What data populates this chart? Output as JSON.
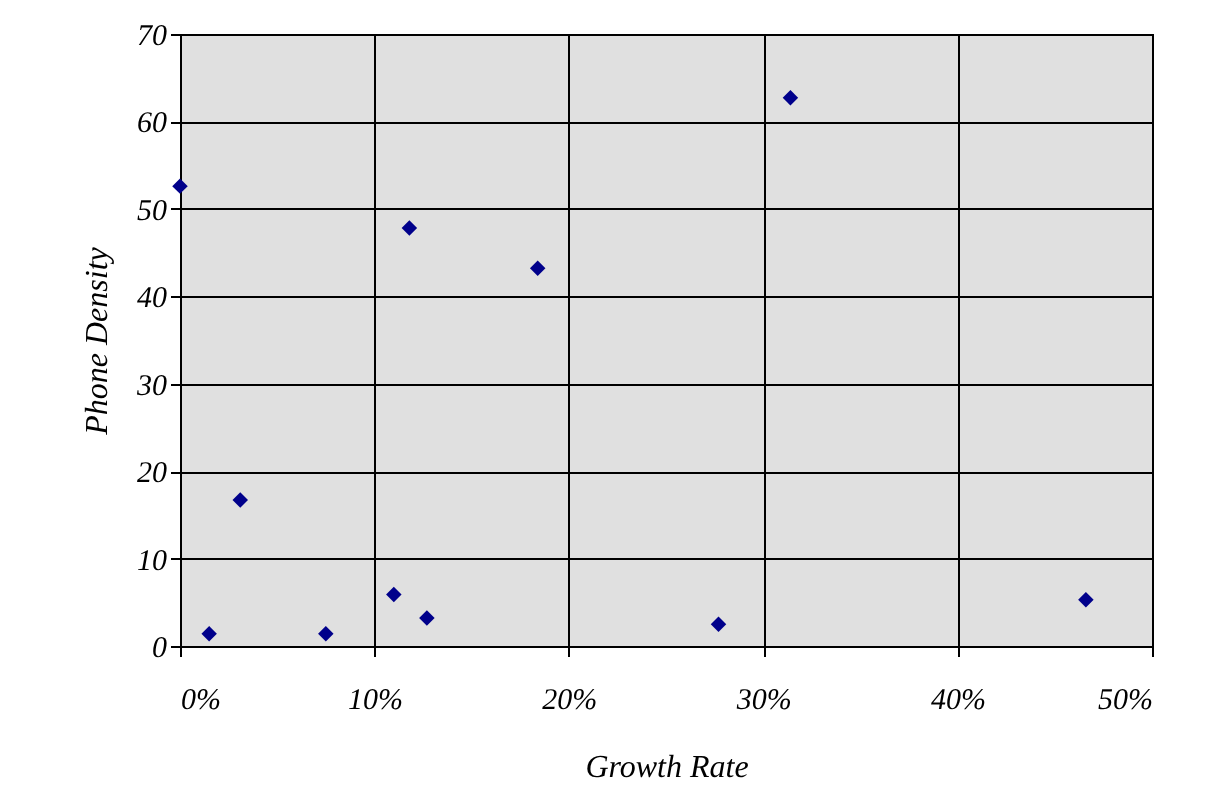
{
  "chart_data": {
    "type": "scatter",
    "xlabel": "Growth Rate",
    "ylabel": "Phone Density",
    "x": [
      0,
      1.5,
      3.1,
      7.5,
      11.0,
      11.8,
      12.7,
      18.4,
      27.7,
      31.4,
      46.6
    ],
    "series": [
      {
        "color": "#00008b",
        "values": [
          52.6,
          1.4,
          16.7,
          1.4,
          5.9,
          47.8,
          3.2,
          43.2,
          2.5,
          62.7,
          5.3
        ]
      }
    ],
    "xlim": [
      0,
      50
    ],
    "xticks": [
      {
        "value": 0,
        "label": "0%"
      },
      {
        "value": 10,
        "label": "10%"
      },
      {
        "value": 20,
        "label": "20%"
      },
      {
        "value": 30,
        "label": "30%"
      },
      {
        "value": 40,
        "label": "40%"
      },
      {
        "value": 50,
        "label": "50%"
      }
    ],
    "ylim": [
      0,
      70
    ],
    "yticks": [
      0,
      10,
      20,
      30,
      40,
      50,
      60,
      70
    ],
    "grid": true,
    "marker": "diamond"
  }
}
